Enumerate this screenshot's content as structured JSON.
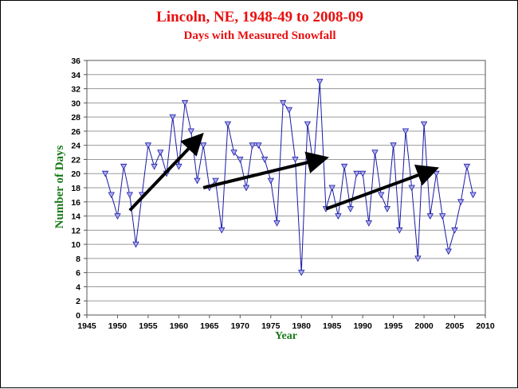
{
  "chart_data": {
    "type": "line",
    "title": "Lincoln, NE, 1948-49 to 2008-09",
    "subtitle": "Days with Measured Snowfall",
    "xlabel": "Year",
    "ylabel": "Number of Days",
    "xlim": [
      1945,
      2010
    ],
    "ylim": [
      0,
      36
    ],
    "xticks": [
      1945,
      1950,
      1955,
      1960,
      1965,
      1970,
      1975,
      1980,
      1985,
      1990,
      1995,
      2000,
      2005,
      2010
    ],
    "yticks": [
      0,
      2,
      4,
      6,
      8,
      10,
      12,
      14,
      16,
      18,
      20,
      22,
      24,
      26,
      28,
      30,
      32,
      34,
      36
    ],
    "grid": true,
    "series": [
      {
        "x": [
          1948,
          1949,
          1950,
          1951,
          1952,
          1953,
          1954,
          1955,
          1956,
          1957,
          1958,
          1959,
          1960,
          1961,
          1962,
          1963,
          1964,
          1965,
          1966,
          1967,
          1968,
          1969,
          1970,
          1971,
          1972,
          1973,
          1974,
          1975,
          1976,
          1977,
          1978,
          1979,
          1980,
          1981,
          1982,
          1983,
          1984,
          1985,
          1986,
          1987,
          1988,
          1989,
          1990,
          1991,
          1992,
          1993,
          1994,
          1995,
          1996,
          1997,
          1998,
          1999,
          2000,
          2001,
          2002,
          2003,
          2004,
          2005,
          2006,
          2007,
          2008
        ],
        "values": [
          20,
          17,
          14,
          21,
          17,
          10,
          17,
          24,
          21,
          23,
          20,
          28,
          21,
          30,
          26,
          19,
          24,
          18,
          19,
          12,
          27,
          23,
          22,
          18,
          24,
          24,
          22,
          19,
          13,
          30,
          29,
          22,
          6,
          27,
          21,
          33,
          15,
          18,
          14,
          21,
          15,
          20,
          20,
          13,
          23,
          17,
          15,
          24,
          12,
          26,
          18,
          8,
          27,
          14,
          20,
          14,
          9,
          12,
          16,
          21,
          17
        ]
      }
    ],
    "trend_arrows": [
      {
        "from": [
          1952,
          14.8
        ],
        "to": [
          1963,
          24.8
        ]
      },
      {
        "from": [
          1964,
          18
        ],
        "to": [
          1983,
          22
        ]
      },
      {
        "from": [
          1984,
          15
        ],
        "to": [
          2001,
          20.4
        ]
      }
    ],
    "colors": {
      "title": "#e8100f",
      "axis_title": "#1a7a1a",
      "series_line": "#1a1aa8",
      "marker_fill": "#aaaaee",
      "grid": "#9a9a9a",
      "arrow": "#000000"
    }
  }
}
